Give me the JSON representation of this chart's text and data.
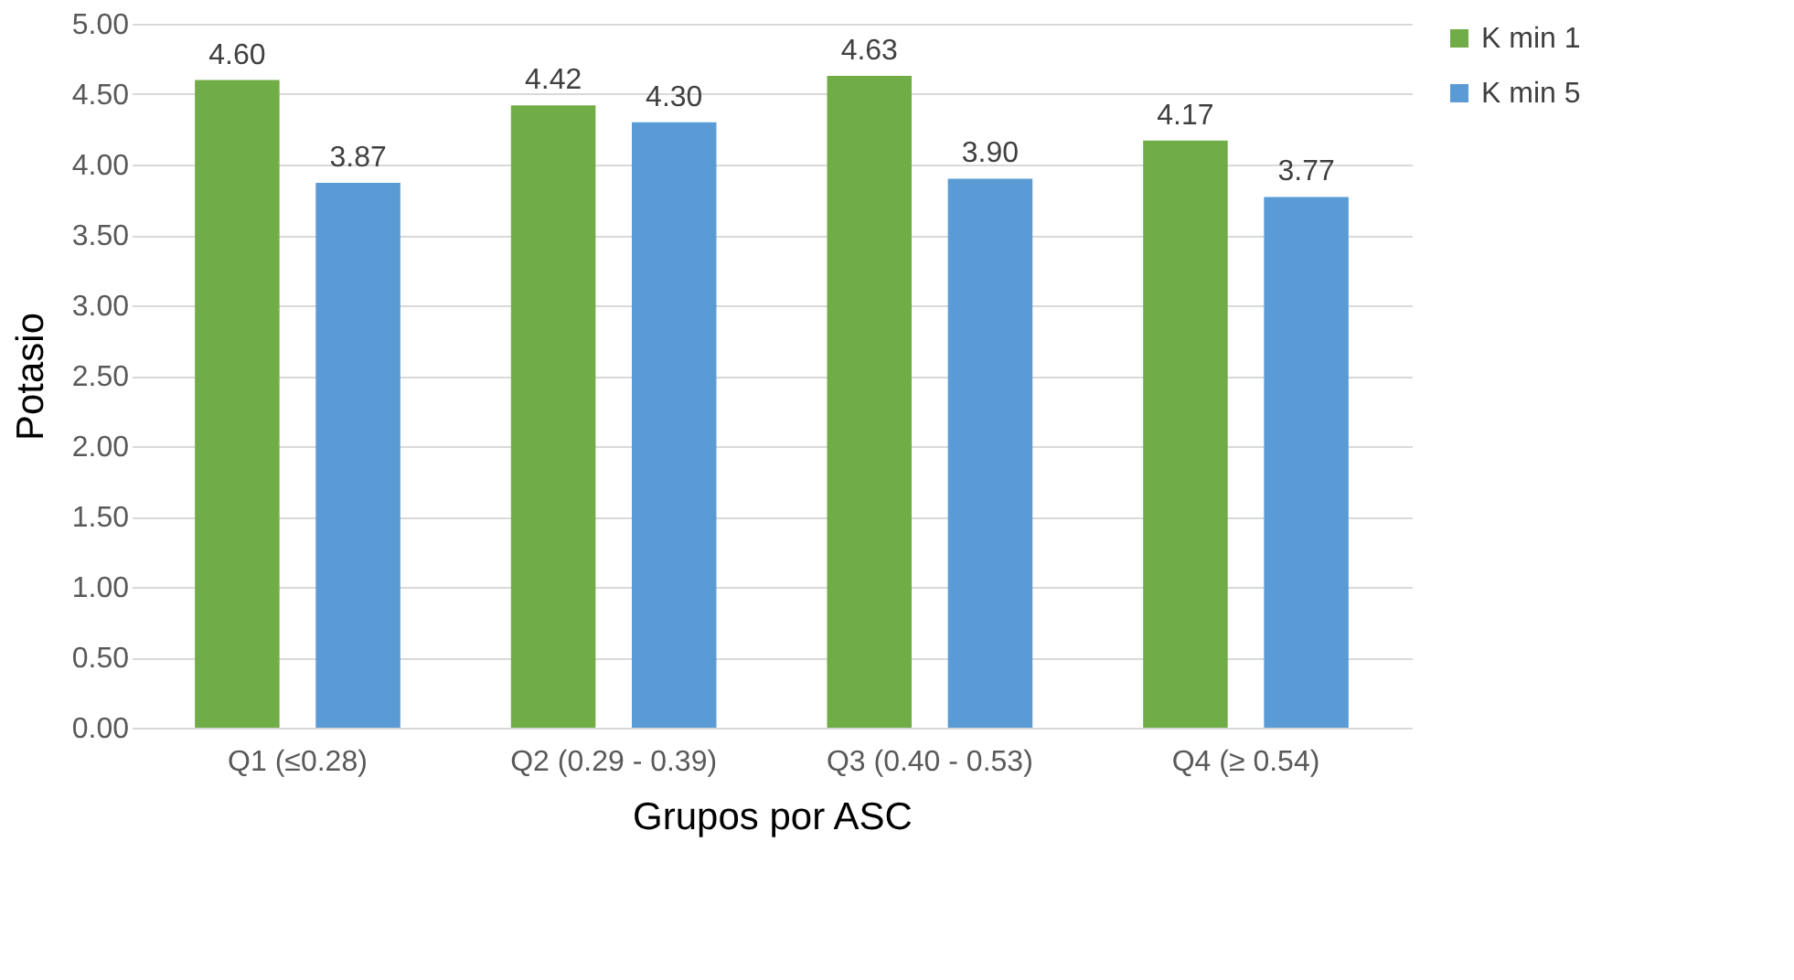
{
  "chart_data": {
    "type": "bar",
    "xlabel": "Grupos por ASC",
    "ylabel": "Potasio",
    "categories": [
      "Q1 (≤0.28)",
      "Q2 (0.29 - 0.39)",
      "Q3 (0.40 - 0.53)",
      "Q4 (≥ 0.54)"
    ],
    "series": [
      {
        "name": "K min 1",
        "color": "#70ad47",
        "values": [
          4.6,
          4.42,
          4.63,
          4.17
        ],
        "value_labels": [
          "4.60",
          "4.42",
          "4.63",
          "4.17"
        ]
      },
      {
        "name": "K min 5",
        "color": "#5b9bd5",
        "values": [
          3.87,
          4.3,
          3.9,
          3.77
        ],
        "value_labels": [
          "3.87",
          "4.30",
          "3.90",
          "3.77"
        ]
      }
    ],
    "ylim": [
      0,
      5
    ],
    "yticks": [
      {
        "value": 0,
        "label": "0.00"
      },
      {
        "value": 0.5,
        "label": "0.50"
      },
      {
        "value": 1,
        "label": "1.00"
      },
      {
        "value": 1.5,
        "label": "1.50"
      },
      {
        "value": 2,
        "label": "2.00"
      },
      {
        "value": 2.5,
        "label": "2.50"
      },
      {
        "value": 3,
        "label": "3.00"
      },
      {
        "value": 3.5,
        "label": "3.50"
      },
      {
        "value": 4,
        "label": "4.00"
      },
      {
        "value": 4.5,
        "label": "4.50"
      },
      {
        "value": 5,
        "label": "5.00"
      }
    ],
    "grid": "y",
    "legend": "right"
  }
}
